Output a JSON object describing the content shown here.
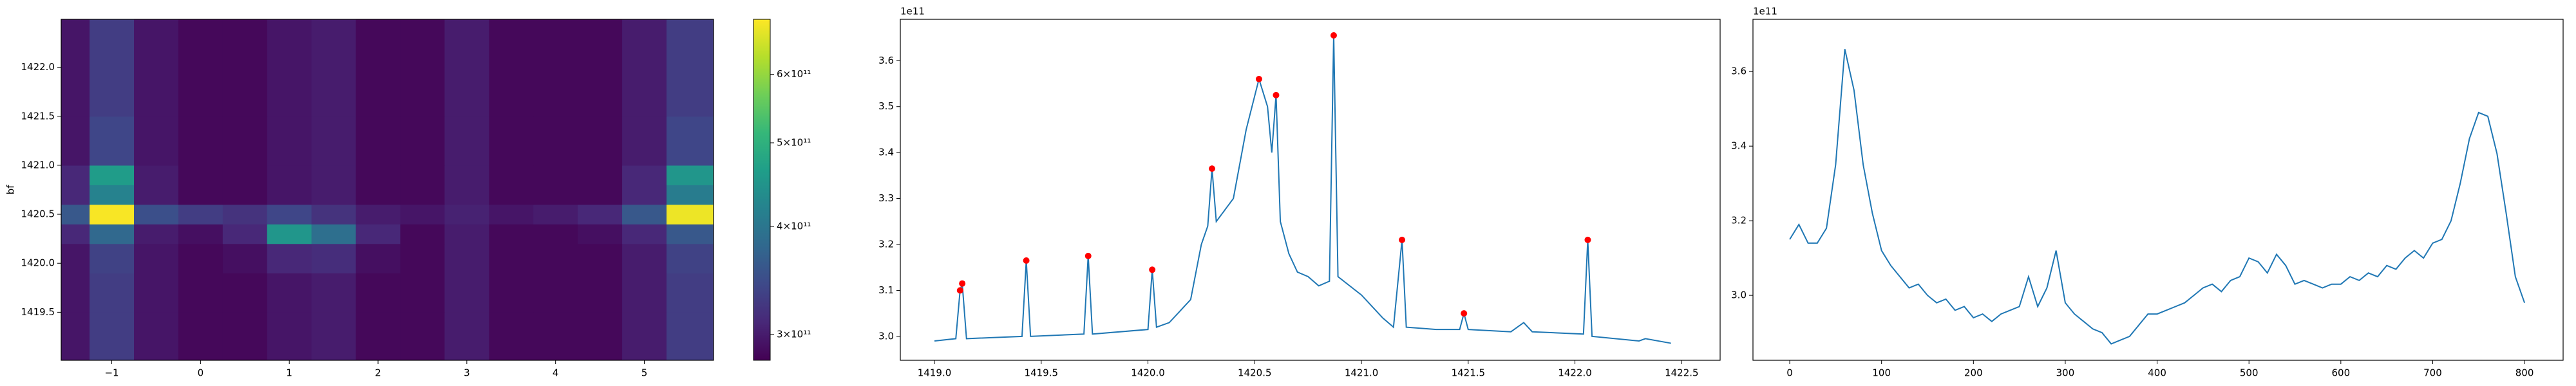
{
  "chart_data": [
    {
      "type": "heatmap",
      "ylabel": "bf",
      "cmap": "viridis",
      "x_edges": [
        -1.57,
        -1.25,
        -0.75,
        -0.25,
        0.25,
        0.75,
        1.25,
        1.75,
        2.25,
        2.75,
        3.25,
        3.75,
        4.25,
        4.75,
        5.25,
        5.78
      ],
      "y_edges": [
        1419.01,
        1419.5,
        1419.9,
        1420.2,
        1420.4,
        1420.6,
        1420.8,
        1421.0,
        1421.5,
        1422.0,
        1422.49
      ],
      "z": [
        [
          295000000000.0,
          330000000000.0,
          295000000000.0,
          285000000000.0,
          285000000000.0,
          295000000000.0,
          300000000000.0,
          285000000000.0,
          285000000000.0,
          300000000000.0,
          285000000000.0,
          285000000000.0,
          285000000000.0,
          300000000000.0,
          330000000000.0
        ],
        [
          295000000000.0,
          330000000000.0,
          295000000000.0,
          285000000000.0,
          285000000000.0,
          295000000000.0,
          300000000000.0,
          285000000000.0,
          285000000000.0,
          300000000000.0,
          285000000000.0,
          285000000000.0,
          285000000000.0,
          300000000000.0,
          330000000000.0
        ],
        [
          295000000000.0,
          335000000000.0,
          295000000000.0,
          285000000000.0,
          290000000000.0,
          310000000000.0,
          315000000000.0,
          290000000000.0,
          285000000000.0,
          300000000000.0,
          285000000000.0,
          285000000000.0,
          285000000000.0,
          300000000000.0,
          335000000000.0
        ],
        [
          310000000000.0,
          380000000000.0,
          300000000000.0,
          290000000000.0,
          310000000000.0,
          450000000000.0,
          390000000000.0,
          310000000000.0,
          285000000000.0,
          300000000000.0,
          285000000000.0,
          285000000000.0,
          290000000000.0,
          310000000000.0,
          360000000000.0
        ],
        [
          360000000000.0,
          690000000000.0,
          350000000000.0,
          330000000000.0,
          320000000000.0,
          340000000000.0,
          320000000000.0,
          300000000000.0,
          295000000000.0,
          305000000000.0,
          295000000000.0,
          300000000000.0,
          310000000000.0,
          360000000000.0,
          680000000000.0
        ],
        [
          310000000000.0,
          420000000000.0,
          300000000000.0,
          285000000000.0,
          285000000000.0,
          295000000000.0,
          300000000000.0,
          285000000000.0,
          285000000000.0,
          300000000000.0,
          285000000000.0,
          285000000000.0,
          285000000000.0,
          310000000000.0,
          410000000000.0
        ],
        [
          310000000000.0,
          460000000000.0,
          300000000000.0,
          285000000000.0,
          285000000000.0,
          295000000000.0,
          300000000000.0,
          285000000000.0,
          285000000000.0,
          300000000000.0,
          285000000000.0,
          285000000000.0,
          285000000000.0,
          310000000000.0,
          450000000000.0
        ],
        [
          295000000000.0,
          340000000000.0,
          295000000000.0,
          285000000000.0,
          285000000000.0,
          295000000000.0,
          300000000000.0,
          285000000000.0,
          285000000000.0,
          300000000000.0,
          285000000000.0,
          285000000000.0,
          285000000000.0,
          300000000000.0,
          340000000000.0
        ],
        [
          295000000000.0,
          330000000000.0,
          295000000000.0,
          285000000000.0,
          285000000000.0,
          295000000000.0,
          300000000000.0,
          285000000000.0,
          285000000000.0,
          300000000000.0,
          285000000000.0,
          285000000000.0,
          285000000000.0,
          300000000000.0,
          330000000000.0
        ],
        [
          295000000000.0,
          330000000000.0,
          295000000000.0,
          285000000000.0,
          285000000000.0,
          295000000000.0,
          300000000000.0,
          285000000000.0,
          285000000000.0,
          300000000000.0,
          285000000000.0,
          285000000000.0,
          285000000000.0,
          300000000000.0,
          330000000000.0
        ]
      ],
      "xlim": [
        -1.57,
        5.78
      ],
      "ylim": [
        1419.01,
        1422.49
      ],
      "xticks": [
        {
          "value": -1,
          "label": "−1"
        },
        0,
        1,
        2,
        3,
        4,
        5
      ],
      "yticks": [
        1419.5,
        {
          "value": 1420.0,
          "label": "1420.0"
        },
        1420.5,
        {
          "value": 1421.0,
          "label": "1421.0"
        },
        1421.5,
        {
          "value": 1422.0,
          "label": "1422.0"
        }
      ],
      "colorbar": {
        "scale": "log",
        "clim": [
          280000000000.0,
          695000000000.0
        ],
        "ticks": [
          {
            "value": 300000000000.0,
            "label": "3×10¹¹"
          },
          {
            "value": 400000000000.0,
            "label": "4×10¹¹"
          },
          {
            "value": 500000000000.0,
            "label": "5×10¹¹"
          },
          {
            "value": 600000000000.0,
            "label": "6×10¹¹"
          }
        ]
      }
    },
    {
      "type": "line",
      "offset_text": "1e11",
      "x": [
        1419.0,
        1419.1,
        1419.12,
        1419.13,
        1419.15,
        1419.41,
        1419.43,
        1419.45,
        1419.7,
        1419.72,
        1419.74,
        1420.0,
        1420.02,
        1420.04,
        1420.1,
        1420.2,
        1420.25,
        1420.28,
        1420.3,
        1420.32,
        1420.4,
        1420.46,
        1420.52,
        1420.56,
        1420.58,
        1420.6,
        1420.62,
        1420.66,
        1420.7,
        1420.75,
        1420.8,
        1420.85,
        1420.87,
        1420.89,
        1421.0,
        1421.1,
        1421.15,
        1421.19,
        1421.21,
        1421.35,
        1421.46,
        1421.48,
        1421.5,
        1421.7,
        1421.76,
        1421.8,
        1422.04,
        1422.06,
        1422.08,
        1422.3,
        1422.33,
        1422.45
      ],
      "series": [
        {
          "color": "#1f77b4",
          "values": [
            2.99,
            2.995,
            3.1,
            3.115,
            2.995,
            3.0,
            3.165,
            3.0,
            3.005,
            3.175,
            3.005,
            3.015,
            3.145,
            3.02,
            3.03,
            3.08,
            3.2,
            3.24,
            3.365,
            3.25,
            3.3,
            3.45,
            3.56,
            3.5,
            3.4,
            3.525,
            3.25,
            3.18,
            3.14,
            3.13,
            3.11,
            3.12,
            3.655,
            3.13,
            3.09,
            3.04,
            3.02,
            3.21,
            3.02,
            3.015,
            3.015,
            3.05,
            3.015,
            3.01,
            3.03,
            3.01,
            3.005,
            3.21,
            3.0,
            2.99,
            2.995,
            2.985
          ]
        }
      ],
      "markers": {
        "color": "#ff0000",
        "x": [
          1419.12,
          1419.13,
          1419.43,
          1419.72,
          1420.02,
          1420.3,
          1420.52,
          1420.6,
          1420.87,
          1421.19,
          1421.48,
          1422.06
        ],
        "values": [
          3.1,
          3.115,
          3.165,
          3.175,
          3.145,
          3.365,
          3.56,
          3.525,
          3.655,
          3.21,
          3.05,
          3.21
        ]
      },
      "xlim": [
        1418.84,
        1422.68
      ],
      "ylim": [
        2.948,
        3.69
      ],
      "xticks": [
        {
          "value": 1419.0,
          "label": "1419.0"
        },
        1419.5,
        {
          "value": 1420.0,
          "label": "1420.0"
        },
        1420.5,
        {
          "value": 1421.0,
          "label": "1421.0"
        },
        1421.5,
        {
          "value": 1422.0,
          "label": "1422.0"
        },
        1422.5
      ],
      "yticks": [
        {
          "value": 3.0,
          "label": "3.0"
        },
        3.1,
        3.2,
        3.3,
        3.4,
        3.5,
        3.6
      ]
    },
    {
      "type": "line",
      "offset_text": "1e11",
      "x": [
        0,
        10,
        20,
        30,
        40,
        50,
        60,
        70,
        80,
        90,
        100,
        110,
        120,
        130,
        140,
        150,
        160,
        170,
        180,
        190,
        200,
        210,
        220,
        230,
        240,
        250,
        260,
        270,
        280,
        290,
        300,
        310,
        320,
        330,
        340,
        350,
        360,
        370,
        380,
        390,
        400,
        410,
        420,
        430,
        440,
        450,
        460,
        470,
        480,
        490,
        500,
        510,
        520,
        530,
        540,
        550,
        560,
        570,
        580,
        590,
        600,
        610,
        620,
        630,
        640,
        650,
        660,
        670,
        680,
        690,
        700,
        710,
        720,
        730,
        740,
        750,
        760,
        770,
        780,
        790,
        800
      ],
      "series": [
        {
          "color": "#1f77b4",
          "values": [
            3.15,
            3.19,
            3.14,
            3.14,
            3.18,
            3.35,
            3.66,
            3.55,
            3.35,
            3.22,
            3.12,
            3.08,
            3.05,
            3.02,
            3.03,
            3.0,
            2.98,
            2.99,
            2.96,
            2.97,
            2.94,
            2.95,
            2.93,
            2.95,
            2.96,
            2.97,
            3.05,
            2.97,
            3.02,
            3.12,
            2.98,
            2.95,
            2.93,
            2.91,
            2.9,
            2.87,
            2.88,
            2.89,
            2.92,
            2.95,
            2.95,
            2.96,
            2.97,
            2.98,
            3.0,
            3.02,
            3.03,
            3.01,
            3.04,
            3.05,
            3.1,
            3.09,
            3.06,
            3.11,
            3.08,
            3.03,
            3.04,
            3.03,
            3.02,
            3.03,
            3.03,
            3.05,
            3.04,
            3.06,
            3.05,
            3.08,
            3.07,
            3.1,
            3.12,
            3.1,
            3.14,
            3.15,
            3.2,
            3.3,
            3.42,
            3.49,
            3.48,
            3.38,
            3.22,
            3.05,
            2.98
          ]
        }
      ],
      "xlim": [
        -40,
        842
      ],
      "ylim": [
        2.826,
        3.74
      ],
      "xticks": [
        0,
        100,
        200,
        300,
        400,
        500,
        600,
        700,
        800
      ],
      "yticks": [
        {
          "value": 3.0,
          "label": "3.0"
        },
        3.2,
        3.4,
        3.6
      ]
    }
  ]
}
